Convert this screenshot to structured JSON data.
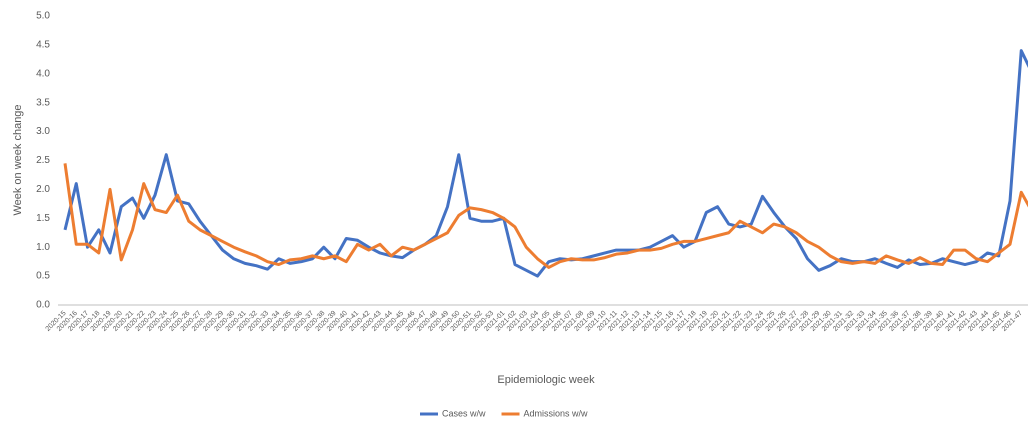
{
  "chart_data": {
    "type": "line",
    "y_label": "Week on week change",
    "x_label": "Epidemiologic week",
    "categories": [
      "2020-15",
      "2020-16",
      "2020-17",
      "2020-18",
      "2020-19",
      "2020-20",
      "2020-21",
      "2020-22",
      "2020-23",
      "2020-24",
      "2020-25",
      "2020-26",
      "2020-27",
      "2020-28",
      "2020-29",
      "2020-30",
      "2020-31",
      "2020-32",
      "2020-33",
      "2020-34",
      "2020-35",
      "2020-36",
      "2020-37",
      "2020-38",
      "2020-39",
      "2020-40",
      "2020-41",
      "2020-42",
      "2020-43",
      "2020-44",
      "2020-45",
      "2020-46",
      "2020-47",
      "2020-48",
      "2020-49",
      "2020-50",
      "2020-51",
      "2020-52",
      "2020-53",
      "2021-01",
      "2021-02",
      "2021-03",
      "2021-04",
      "2021-05",
      "2021-06",
      "2021-07",
      "2021-08",
      "2021-09",
      "2021-10",
      "2021-11",
      "2021-12",
      "2021-13",
      "2021-14",
      "2021-15",
      "2021-16",
      "2021-17",
      "2021-18",
      "2021-19",
      "2021-20",
      "2021-21",
      "2021-22",
      "2021-23",
      "2021-24",
      "2021-25",
      "2021-26",
      "2021-27",
      "2021-28",
      "2021-29",
      "2021-30",
      "2021-31",
      "2021-32",
      "2021-33",
      "2021-34",
      "2021-35",
      "2021-36",
      "2021-37",
      "2021-38",
      "2021-39",
      "2021-40",
      "2021-41",
      "2021-42",
      "2021-43",
      "2021-44",
      "2021-45",
      "2021-46",
      "2021-47",
      "2021-48"
    ],
    "series": [
      {
        "name": "Cases w/w",
        "color": "#4472c4",
        "values": [
          1.3,
          2.1,
          1.0,
          1.3,
          0.9,
          1.7,
          1.85,
          1.5,
          1.9,
          2.6,
          1.8,
          1.75,
          1.45,
          1.2,
          0.95,
          0.8,
          0.72,
          0.68,
          0.62,
          0.8,
          0.72,
          0.75,
          0.8,
          1.0,
          0.8,
          1.15,
          1.12,
          1.0,
          0.9,
          0.85,
          0.82,
          0.95,
          1.05,
          1.2,
          1.7,
          2.6,
          1.5,
          1.45,
          1.45,
          1.5,
          0.7,
          0.6,
          0.5,
          0.75,
          0.8,
          0.78,
          0.8,
          0.85,
          0.9,
          0.95,
          0.95,
          0.95,
          1.0,
          1.1,
          1.2,
          1.0,
          1.1,
          1.6,
          1.7,
          1.4,
          1.35,
          1.4,
          1.88,
          1.6,
          1.35,
          1.15,
          0.8,
          0.6,
          0.68,
          0.8,
          0.75,
          0.75,
          0.8,
          0.72,
          0.65,
          0.78,
          0.7,
          0.72,
          0.8,
          0.75,
          0.7,
          0.75,
          0.9,
          0.85,
          1.8,
          4.4,
          4.0
        ]
      },
      {
        "name": "Admissions w/w",
        "color": "#ed7d31",
        "values": [
          2.45,
          1.05,
          1.05,
          0.9,
          2.0,
          0.78,
          1.3,
          2.1,
          1.65,
          1.6,
          1.9,
          1.45,
          1.3,
          1.2,
          1.1,
          1.0,
          0.92,
          0.85,
          0.75,
          0.7,
          0.78,
          0.8,
          0.85,
          0.8,
          0.85,
          0.75,
          1.05,
          0.95,
          1.05,
          0.85,
          1.0,
          0.95,
          1.05,
          1.15,
          1.25,
          1.55,
          1.68,
          1.65,
          1.6,
          1.5,
          1.35,
          1.0,
          0.8,
          0.65,
          0.75,
          0.8,
          0.78,
          0.78,
          0.82,
          0.88,
          0.9,
          0.95,
          0.95,
          0.98,
          1.05,
          1.1,
          1.1,
          1.15,
          1.2,
          1.25,
          1.45,
          1.35,
          1.25,
          1.4,
          1.35,
          1.25,
          1.1,
          1.0,
          0.85,
          0.75,
          0.72,
          0.75,
          0.72,
          0.85,
          0.78,
          0.72,
          0.82,
          0.72,
          0.7,
          0.95,
          0.95,
          0.8,
          0.75,
          0.9,
          1.05,
          1.95,
          1.6
        ]
      }
    ],
    "ylim": [
      0,
      5
    ],
    "yticks": [
      {
        "value": 0,
        "label": "0.0"
      },
      {
        "value": 0.5,
        "label": "0.5"
      },
      {
        "value": 1,
        "label": "1.0"
      },
      {
        "value": 1.5,
        "label": "1.5"
      },
      {
        "value": 2,
        "label": "2.0"
      },
      {
        "value": 2.5,
        "label": "2.5"
      },
      {
        "value": 3,
        "label": "3.0"
      },
      {
        "value": 3.5,
        "label": "3.5"
      },
      {
        "value": 4,
        "label": "4.0"
      },
      {
        "value": 4.5,
        "label": "4.5"
      },
      {
        "value": 5,
        "label": "5.0"
      }
    ],
    "grid": false,
    "legend": "bottom"
  }
}
